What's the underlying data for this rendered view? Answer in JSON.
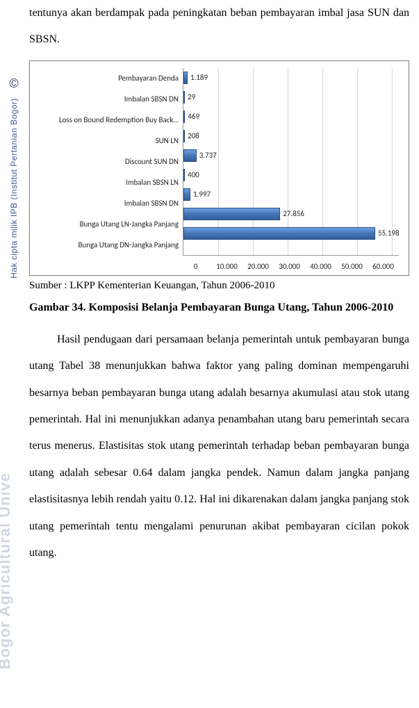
{
  "page": {
    "lead_text": "tentunya akan berdampak pada peningkatan beban pembayaran imbal jasa SUN dan SBSN.",
    "source_line": "Sumber : LKPP Kementerian Keuangan, Tahun 2006-2010",
    "caption": "Gambar 34. Komposisi Belanja Pembayaran Bunga Utang, Tahun 2006-2010",
    "body_text": "Hasil pendugaan dari persamaan belanja pemerintah untuk pembayaran bunga utang Tabel 38 menunjukkan bahwa faktor yang paling dominan mempengaruhi besarnya beban pembayaran bunga utang adalah besarnya akumulasi atau stok utang pemerintah. Hal ini menunjukkan adanya penambahan utang baru pemerintah secara terus menerus. Elastisitas stok utang pemerintah terhadap beban pembayaran bunga utang adalah sebesar 0.64 dalam jangka pendek. Namun dalam jangka panjang elastisitasnya lebih rendah yaitu 0.12. Hal ini dikarenakan dalam jangka panjang stok utang pemerintah tentu mengalami penurunan akibat pembayaran cicilan pokok utang."
  },
  "sidebar": {
    "copyright": "©",
    "line1": "Hak cipta milik IPB (Institut Pertanian Bogor)",
    "watermark": "Bogor Agricultural Unive"
  },
  "chart": {
    "type": "bar-horizontal",
    "xlim": [
      0,
      60000
    ],
    "xtick_step": 10000,
    "xtick_labels": [
      "0",
      "10.000",
      "20.000",
      "30.000",
      "40.000",
      "50.000",
      "60.000"
    ],
    "bar_color": "#4472c4",
    "bar_border": "#2a4c7d",
    "grid_color": "#d8d8d8",
    "axis_color": "#999999",
    "background_color": "#ffffff",
    "label_fontsize": 11,
    "categories": [
      "Pembayaran Denda",
      "Imbalan SBSN DN",
      "Loss on Bound Redemption Buy Back…",
      "SUN LN",
      "Discount SUN DN",
      "Imbalan SBSN LN",
      "Imbalan SBSN DN",
      "Bunga Utang LN-Jangka Panjang",
      "Bunga Utang DN-Jangka Panjang"
    ],
    "values": [
      1189,
      29,
      469,
      208,
      3737,
      400,
      1997,
      27856,
      55198
    ],
    "value_labels": [
      "1.189",
      "29",
      "469",
      "208",
      "3.737",
      "400",
      "1.997",
      "27.856",
      "55.198"
    ]
  }
}
